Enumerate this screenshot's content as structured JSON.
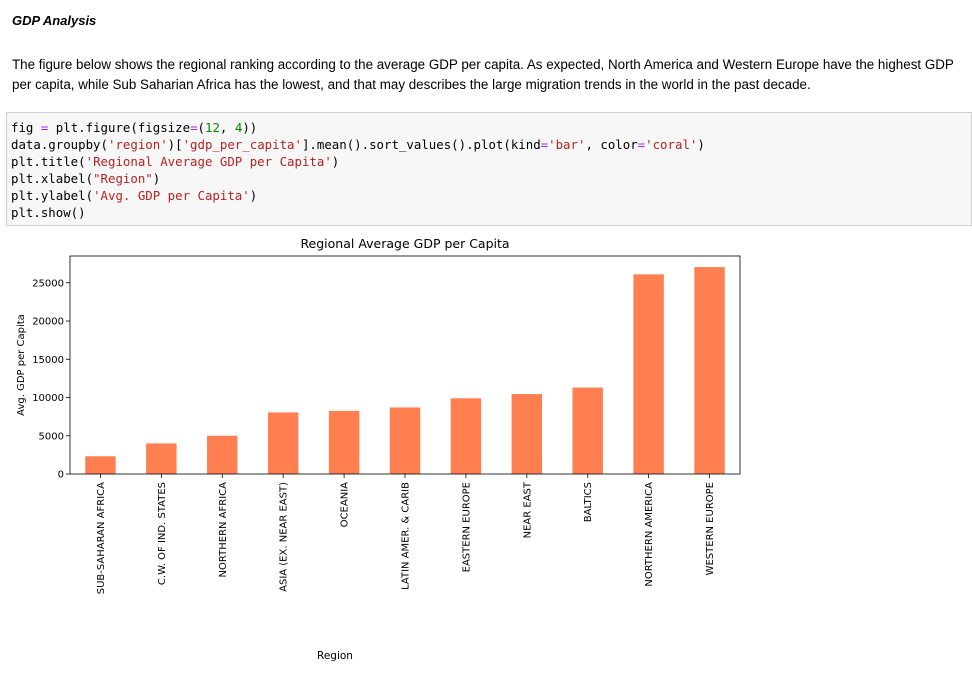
{
  "markdown": {
    "heading": "GDP Analysis",
    "paragraph": "The figure below shows the regional ranking according to the average GDP per capita. As expected, North America and Western Europe have the highest GDP per capita, while Sub Saharian Africa has the lowest, and that may describes the large migration trends in the world in the past decade."
  },
  "code": {
    "lines": [
      [
        {
          "t": "fig ",
          "c": ""
        },
        {
          "t": "=",
          "c": "op"
        },
        {
          "t": " plt.figure(figsize",
          "c": ""
        },
        {
          "t": "=",
          "c": "op"
        },
        {
          "t": "(",
          "c": ""
        },
        {
          "t": "12",
          "c": "num"
        },
        {
          "t": ", ",
          "c": ""
        },
        {
          "t": "4",
          "c": "num"
        },
        {
          "t": "))",
          "c": ""
        }
      ],
      [
        {
          "t": "data.groupby(",
          "c": ""
        },
        {
          "t": "'region'",
          "c": "str"
        },
        {
          "t": ")[",
          "c": ""
        },
        {
          "t": "'gdp_per_capita'",
          "c": "str"
        },
        {
          "t": "].mean().sort_values().plot(kind",
          "c": ""
        },
        {
          "t": "=",
          "c": "op"
        },
        {
          "t": "'bar'",
          "c": "str"
        },
        {
          "t": ", color",
          "c": ""
        },
        {
          "t": "=",
          "c": "op"
        },
        {
          "t": "'coral'",
          "c": "str"
        },
        {
          "t": ")",
          "c": ""
        }
      ],
      [
        {
          "t": "plt.title(",
          "c": ""
        },
        {
          "t": "'Regional Average GDP per Capita'",
          "c": "str"
        },
        {
          "t": ")",
          "c": ""
        }
      ],
      [
        {
          "t": "plt.xlabel(",
          "c": ""
        },
        {
          "t": "\"Region\"",
          "c": "str"
        },
        {
          "t": ")",
          "c": ""
        }
      ],
      [
        {
          "t": "plt.ylabel(",
          "c": ""
        },
        {
          "t": "'Avg. GDP per Capita'",
          "c": "str"
        },
        {
          "t": ")",
          "c": ""
        }
      ],
      [
        {
          "t": "plt.show()",
          "c": ""
        }
      ]
    ]
  },
  "chart_data": {
    "type": "bar",
    "title": "Regional Average GDP per Capita",
    "xlabel": "Region",
    "ylabel": "Avg. GDP per Capita",
    "categories": [
      "SUB-SAHARAN AFRICA",
      "C.W. OF IND. STATES",
      "NORTHERN AFRICA",
      "ASIA (EX. NEAR EAST)",
      "OCEANIA",
      "LATIN AMER. & CARIB",
      "EASTERN EUROPE",
      "NEAR EAST",
      "BALTICS",
      "NORTHERN AMERICA",
      "WESTERN EUROPE"
    ],
    "values": [
      2320,
      4000,
      5000,
      8050,
      8250,
      8700,
      9900,
      10450,
      11300,
      26100,
      27050
    ],
    "ylim": [
      0,
      28500
    ],
    "yticks": [
      0,
      5000,
      10000,
      15000,
      20000,
      25000
    ],
    "bar_color": "#ff7f50",
    "grid": false
  }
}
